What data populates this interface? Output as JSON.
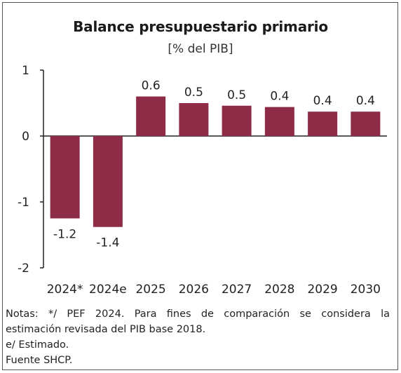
{
  "chart_data": {
    "type": "bar",
    "title": "Balance presupuestario primario",
    "subtitle": "[% del PIB]",
    "categories": [
      "2024*",
      "2024e",
      "2025",
      "2026",
      "2027",
      "2028",
      "2029",
      "2030"
    ],
    "values": [
      -1.25,
      -1.38,
      0.6,
      0.5,
      0.46,
      0.44,
      0.37,
      0.37
    ],
    "value_labels": [
      "-1.2",
      "-1.4",
      "0.6",
      "0.5",
      "0.5",
      "0.4",
      "0.4",
      "0.4"
    ],
    "ylim": [
      -2,
      1
    ],
    "yticks": [
      1,
      0,
      -1,
      -2
    ],
    "ytick_labels": [
      "1",
      "0",
      "-1",
      "-2"
    ],
    "bar_color": "#8e2c48",
    "grid": false,
    "legend": "none",
    "xlabel": "",
    "ylabel": ""
  },
  "notes": [
    "Notas: */ PEF 2024. Para fines de comparación se considera la",
    "estimación revisada del PIB base 2018.",
    "e/ Estimado.",
    "Fuente SHCP."
  ]
}
